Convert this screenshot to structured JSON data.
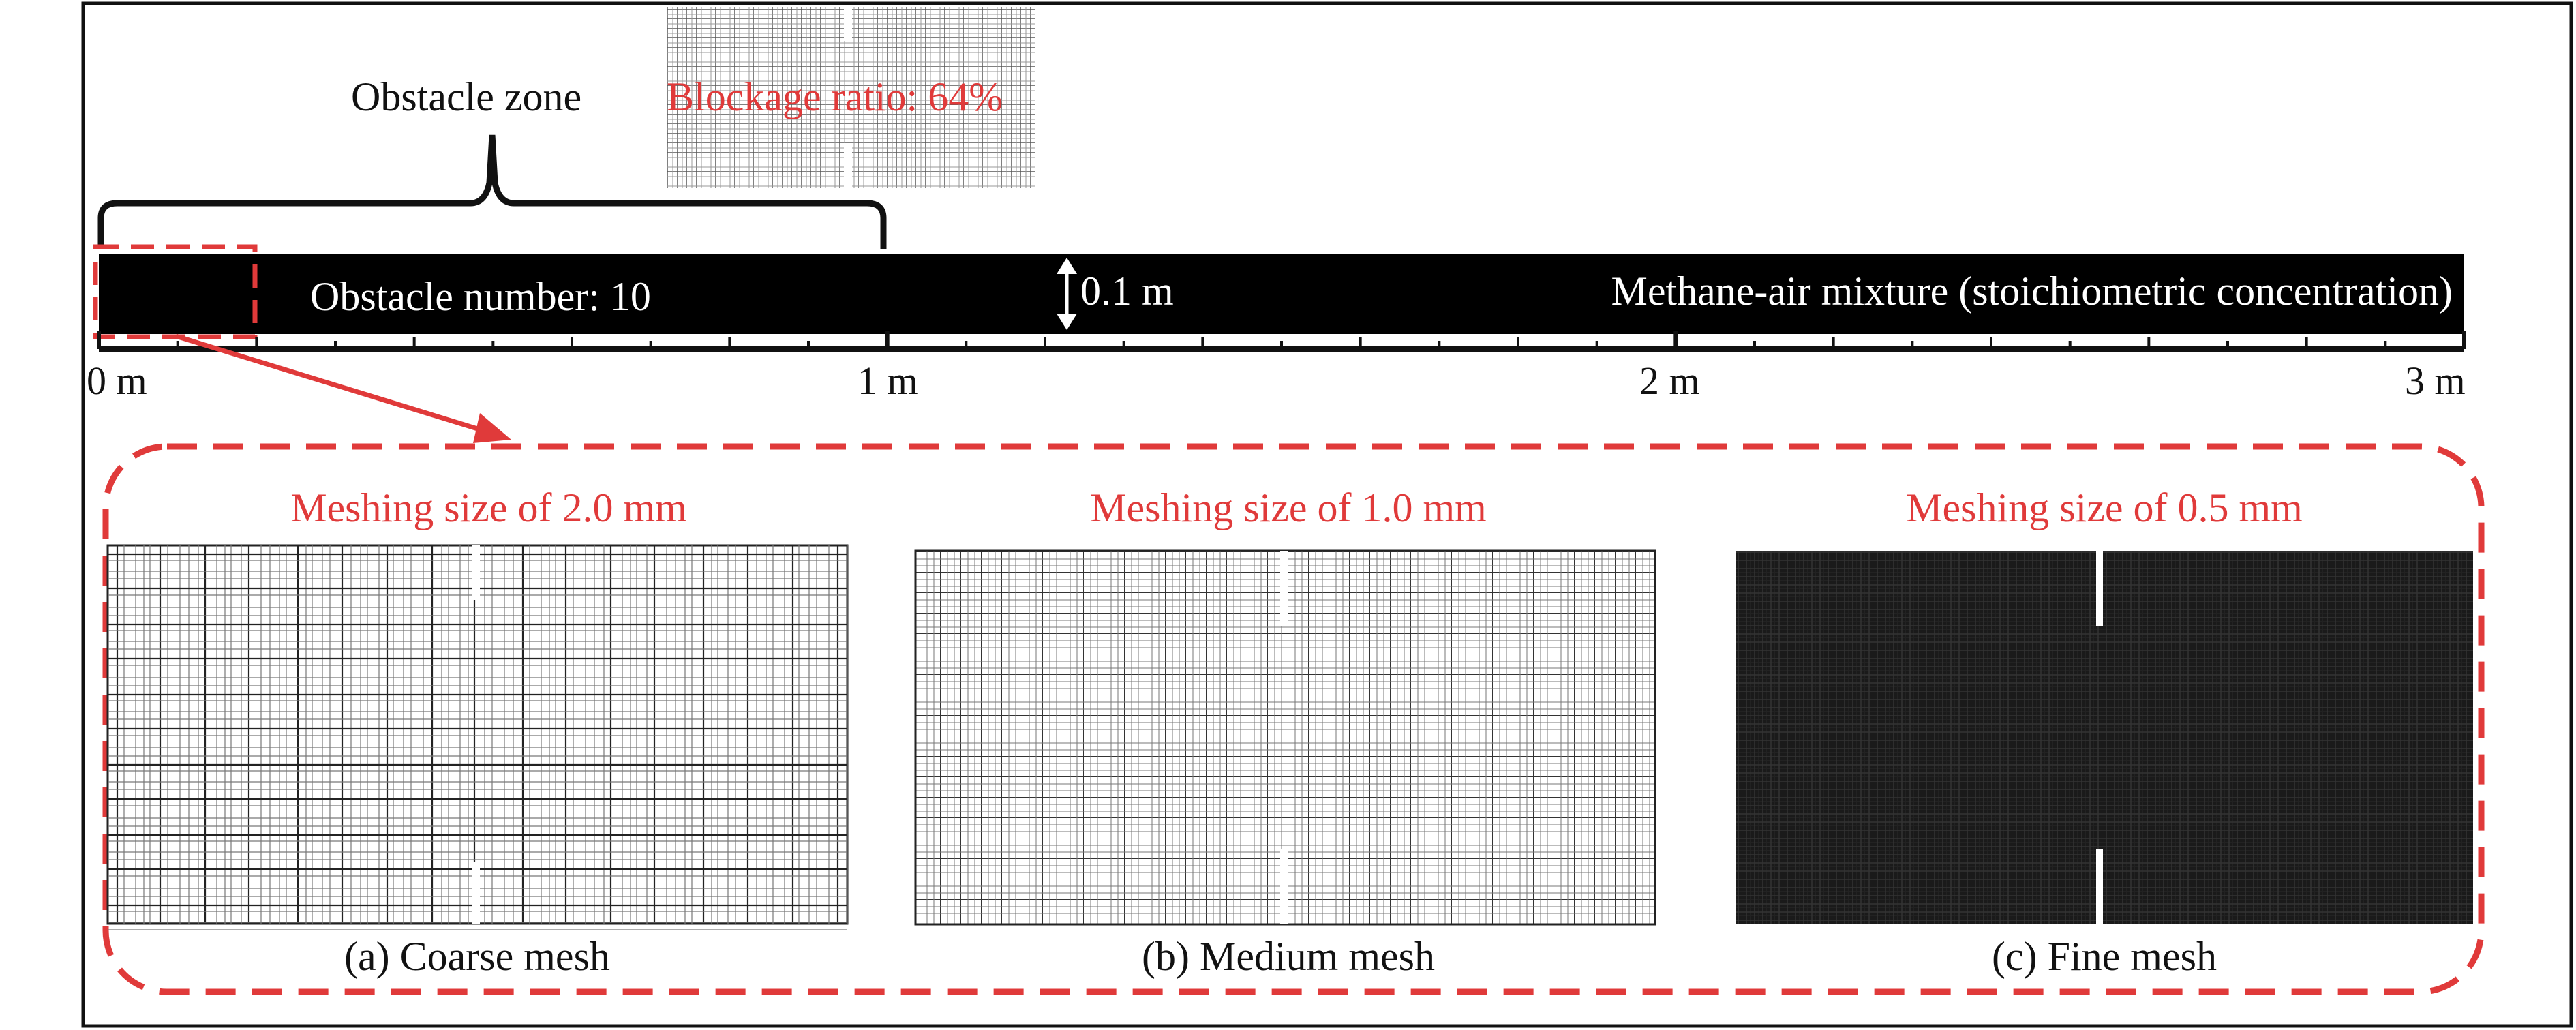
{
  "obstacle_zone_label": "Obstacle zone",
  "blockage_ratio_label": "Blockage ratio: 64%",
  "obstacle_number_label": "Obstacle number: 10",
  "height_label": "0.1 m",
  "mixture_label": "Methane-air mixture (stoichiometric concentration)",
  "axis_ticks": [
    {
      "label": "0 m",
      "value": 0
    },
    {
      "label": "1 m",
      "value": 1
    },
    {
      "label": "2 m",
      "value": 2
    },
    {
      "label": "3 m",
      "value": 3
    }
  ],
  "meshes": [
    {
      "title": "Meshing size of 2.0 mm",
      "caption": "(a) Coarse mesh",
      "mesh_size_mm": 2.0
    },
    {
      "title": "Meshing size of 1.0 mm",
      "caption": "(b) Medium mesh",
      "mesh_size_mm": 1.0
    },
    {
      "title": "Meshing size of 0.5 mm",
      "caption": "(c) Fine mesh",
      "mesh_size_mm": 0.5
    }
  ],
  "colors": {
    "tube": "#000000",
    "annotation_red": "#e03a3a",
    "text": "#111111"
  }
}
